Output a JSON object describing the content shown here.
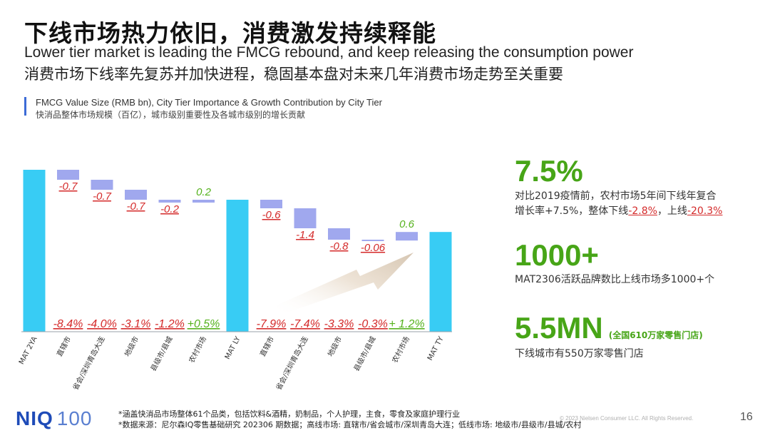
{
  "header": {
    "title": "下线市场热力依旧，消费激发持续释能",
    "subtitle_en": "Lower tier market is leading the FMCG rebound, and keep releasing the consumption power",
    "subtitle_cn": "消费市场下线率先复苏并加快进程，稳固基本盘对未来几年消费市场走势至关重要"
  },
  "chart_header": {
    "title_en": "FMCG Value Size (RMB bn), City Tier Importance & Growth Contribution by City Tier",
    "title_cn": "快消品整体市场规模（百亿），城市级别重要性及各城市级别的增长贡献"
  },
  "chart_data": {
    "type": "bar",
    "subtype": "waterfall",
    "categories": [
      "MAT 2YA",
      "直辖市",
      "省会/深圳青岛大连",
      "地级市",
      "县级市/县城",
      "农村市场",
      "MAT LY",
      "直辖市",
      "省会/深圳青岛大连",
      "地级市",
      "县级市/县城",
      "农村市场",
      "MAT TY"
    ],
    "kinds": [
      "total",
      "delta",
      "delta",
      "delta",
      "delta",
      "delta",
      "total",
      "delta",
      "delta",
      "delta",
      "delta",
      "delta",
      "total"
    ],
    "delta_labels": [
      "",
      "-0.7",
      "-0.7",
      "-0.7",
      "-0.2",
      "0.2",
      "",
      "-0.6",
      "-1.4",
      "-0.8",
      "-0.06",
      "0.6",
      ""
    ],
    "values": [
      null,
      -0.7,
      -0.7,
      -0.7,
      -0.2,
      0.2,
      null,
      -0.6,
      -1.4,
      -0.8,
      -0.06,
      0.6,
      null
    ],
    "growth_labels": [
      "",
      "-8.4%",
      "-4.0%",
      "-3.1%",
      "-1.2%",
      "+0.5%",
      "",
      "-7.9%",
      "-7.4%",
      "-3.3%",
      "-0.3%",
      "+ 1.2%",
      ""
    ],
    "growth_values": [
      null,
      -8.4,
      -4.0,
      -3.1,
      -1.2,
      0.5,
      null,
      -7.9,
      -7.4,
      -3.3,
      -0.3,
      1.2,
      null
    ],
    "y_axis_labels": "none",
    "grid": false,
    "legend": "none",
    "colors": {
      "total": "#38ccf4",
      "delta": "#a0a8ee",
      "negative_label": "#d42a2a",
      "positive_label": "#55b21d",
      "arrow": "#d6c6b2"
    }
  },
  "stats": [
    {
      "value": "7.5%",
      "text_line1": "对比2019疫情前，农村市场5年间下线年复合",
      "text_line2_prefix": "增长率+7.5%，整体下线",
      "neg1": "-2.8%",
      "text_line2_mid": "，上线",
      "neg2": "-20.3%"
    },
    {
      "value": "1000+",
      "text": "MAT2306活跃品牌数比上线市场多1000+个"
    },
    {
      "value": "5.5MN",
      "note": "(全国610万家零售门店)",
      "text": "下线城市有550万家零售门店"
    }
  ],
  "footer": {
    "logo_text": "NIQ",
    "logo_number": "100",
    "footnote_1": "*涵盖快消品市场整体61个品类，包括饮料&酒精，奶制品，个人护理，主食，零食及家庭护理行业",
    "footnote_2": "*数据来源：尼尔森IQ零售基础研究 202306 期数据；高线市场: 直辖市/省会城市/深圳青岛大连；低线市场: 地级市/县级市/县城/农村",
    "copyright": "© 2023 Nielsen Consumer LLC. All Rights Reserved.",
    "page_number": "16"
  }
}
